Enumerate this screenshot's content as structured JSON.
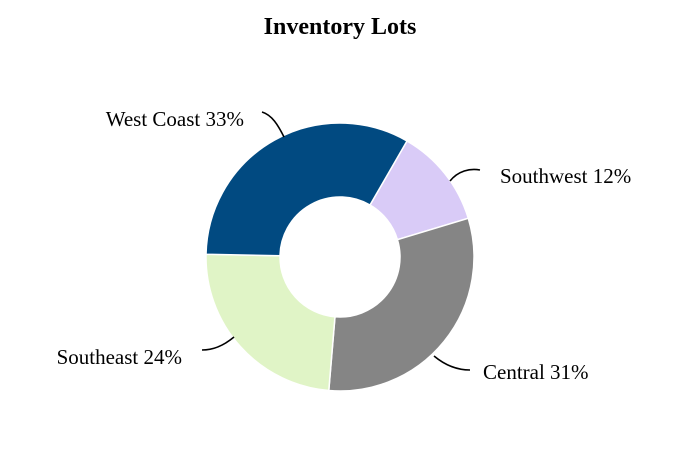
{
  "chart_data": {
    "type": "pie",
    "variant": "donut",
    "title": "Inventory Lots",
    "categories": [
      "Southwest",
      "Central",
      "Southeast",
      "West Coast"
    ],
    "values": [
      12,
      31,
      24,
      33
    ],
    "labels": [
      "Southwest  12%",
      "Central   31%",
      "Southeast  24%",
      "West Coast  33%"
    ],
    "colors": [
      "#D9CBF7",
      "#858585",
      "#E0F4C6",
      "#014A81"
    ],
    "legend": "none",
    "start_angle_deg": 30,
    "direction": "clockwise"
  }
}
